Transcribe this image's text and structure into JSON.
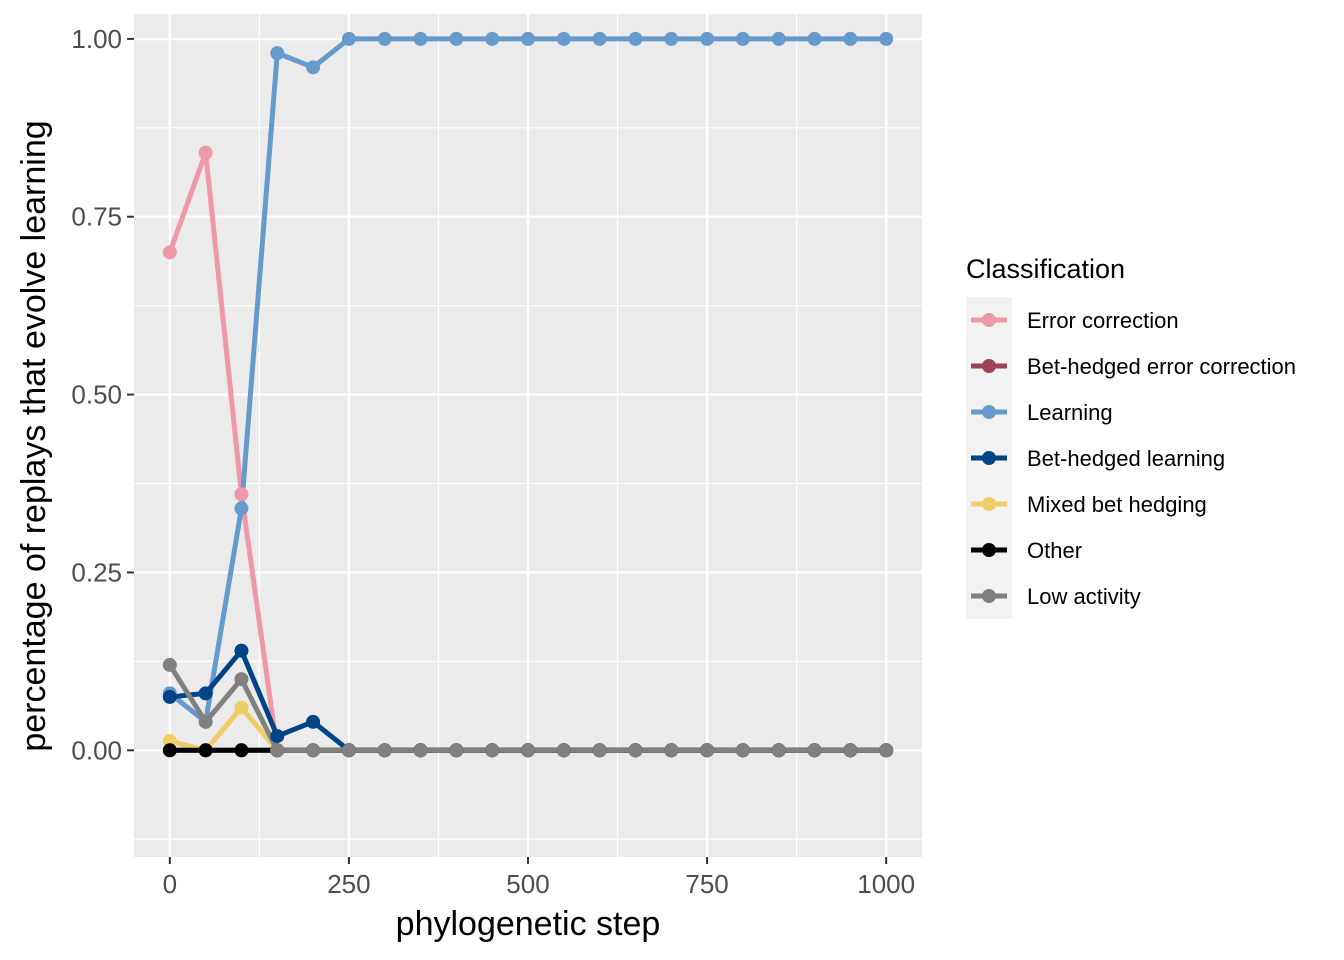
{
  "chart_data": {
    "type": "line",
    "title": "",
    "xlabel": "phylogenetic step",
    "ylabel": "percentage of replays that evolve learning",
    "xlim": [
      -50,
      1050
    ],
    "ylim": [
      -0.15,
      1.035
    ],
    "x_ticks": [
      0,
      250,
      500,
      750,
      1000
    ],
    "x_tick_labels": [
      "0",
      "250",
      "500",
      "750",
      "1000"
    ],
    "y_ticks": [
      0.0,
      0.25,
      0.5,
      0.75,
      1.0
    ],
    "y_tick_labels": [
      "0.00",
      "0.25",
      "0.50",
      "0.75",
      "1.00"
    ],
    "grid": true,
    "legend": {
      "title": "Classification",
      "position": "right"
    },
    "x": [
      0,
      50,
      100,
      150,
      200,
      250,
      300,
      350,
      400,
      450,
      500,
      550,
      600,
      650,
      700,
      750,
      800,
      850,
      900,
      950,
      1000
    ],
    "series": [
      {
        "name": "Error correction",
        "color": "#ee98a8",
        "values": [
          0.7,
          0.84,
          0.36,
          0,
          0,
          0,
          0,
          0,
          0,
          0,
          0,
          0,
          0,
          0,
          0,
          0,
          0,
          0,
          0,
          0,
          0
        ]
      },
      {
        "name": "Bet-hedged error correction",
        "color": "#9b4455",
        "values": [
          0,
          0,
          0,
          0,
          0,
          0,
          0,
          0,
          0,
          0,
          0,
          0,
          0,
          0,
          0,
          0,
          0,
          0,
          0,
          0,
          0
        ]
      },
      {
        "name": "Learning",
        "color": "#6699cc",
        "values": [
          0.08,
          0.04,
          0.34,
          0.98,
          0.96,
          1.0,
          1.0,
          1.0,
          1.0,
          1.0,
          1.0,
          1.0,
          1.0,
          1.0,
          1.0,
          1.0,
          1.0,
          1.0,
          1.0,
          1.0,
          1.0
        ]
      },
      {
        "name": "Bet-hedged learning",
        "color": "#004488",
        "values": [
          0.075,
          0.08,
          0.14,
          0.02,
          0.04,
          0,
          0,
          0,
          0,
          0,
          0,
          0,
          0,
          0,
          0,
          0,
          0,
          0,
          0,
          0,
          0
        ]
      },
      {
        "name": "Mixed bet hedging",
        "color": "#eecc66",
        "values": [
          0.013,
          0,
          0.06,
          0,
          0,
          0,
          0,
          0,
          0,
          0,
          0,
          0,
          0,
          0,
          0,
          0,
          0,
          0,
          0,
          0,
          0
        ]
      },
      {
        "name": "Other",
        "color": "#000000",
        "values": [
          0,
          0,
          0,
          0,
          0,
          0,
          0,
          0,
          0,
          0,
          0,
          0,
          0,
          0,
          0,
          0,
          0,
          0,
          0,
          0,
          0
        ]
      },
      {
        "name": "Low activity",
        "color": "#808080",
        "values": [
          0.12,
          0.04,
          0.1,
          0,
          0,
          0,
          0,
          0,
          0,
          0,
          0,
          0,
          0,
          0,
          0,
          0,
          0,
          0,
          0,
          0,
          0
        ]
      }
    ]
  }
}
